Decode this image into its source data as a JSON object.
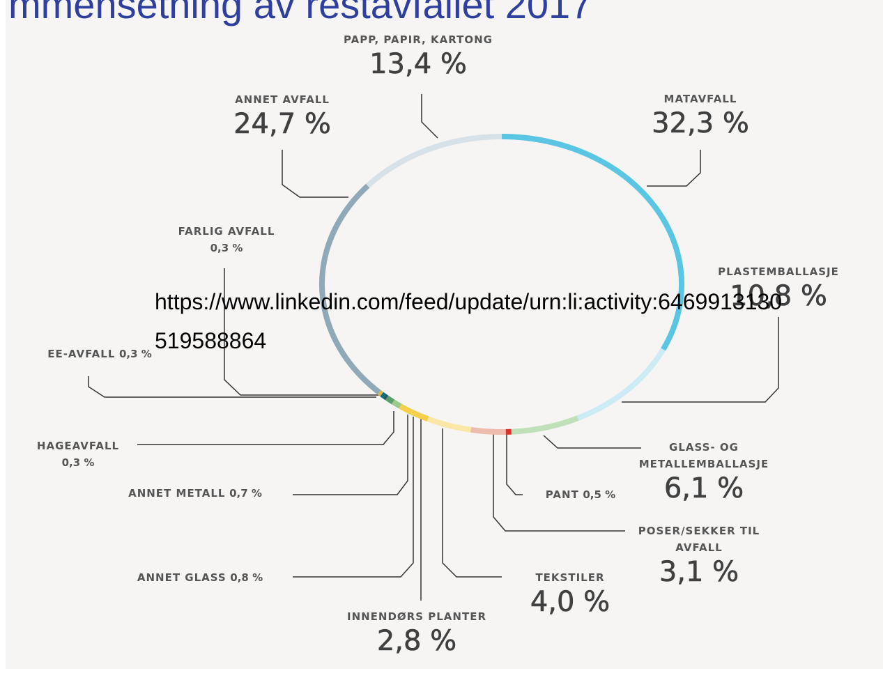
{
  "chart_data": {
    "type": "pie",
    "title": "mmensetning av restavfallet 2017",
    "annotation": "https://www.linkedin.com/feed/update/urn:li:activity:6469913130519588864",
    "categories": [
      "MATAVFALL",
      "PLASTEMBALLASJE",
      "GLASS- OG METALLEMBALLASJE",
      "PANT",
      "POSER/SEKKER TIL AVFALL",
      "TEKSTILER",
      "INNENDØRS PLANTER",
      "ANNET GLASS",
      "ANNET METALL",
      "HAGEAVFALL",
      "EE-AVFALL",
      "FARLIG AVFALL",
      "ANNET AVFALL",
      "PAPP, PAPIR, KARTONG"
    ],
    "values": [
      32.3,
      10.8,
      6.1,
      0.5,
      3.1,
      4.0,
      2.8,
      0.8,
      0.7,
      0.3,
      0.3,
      0.3,
      24.7,
      13.4
    ],
    "value_labels": [
      "32,3 %",
      "10,8 %",
      "6,1 %",
      "0,5 %",
      "3,1 %",
      "4,0 %",
      "2,8 %",
      "0,8 %",
      "0,7 %",
      "0,3 %",
      "0,3 %",
      "0,3 %",
      "24,7 %",
      "13,4 %"
    ],
    "colors": [
      "#5bc6e4",
      "#cdebf5",
      "#bfe0b9",
      "#d9342b",
      "#eebcaf",
      "#fbe7a6",
      "#f3cf4a",
      "#9dc98b",
      "#5b9e6c",
      "#1f5c6b",
      "#0e6c8c",
      "#d9b84a",
      "#8fa9b8",
      "#d6e1e8"
    ]
  }
}
